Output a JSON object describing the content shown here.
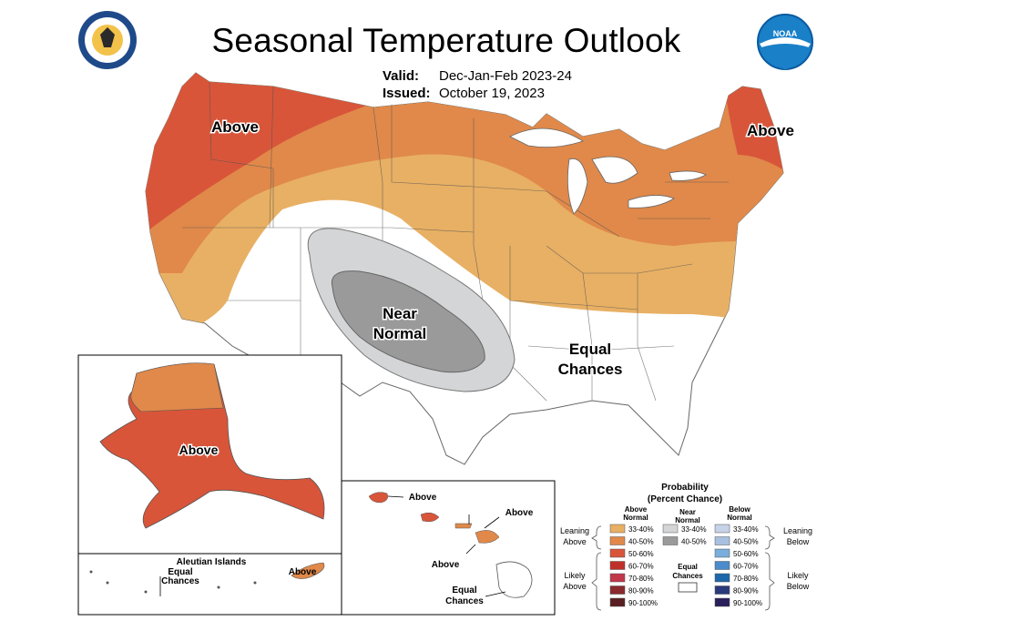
{
  "header": {
    "title": "Seasonal Temperature Outlook",
    "valid_label": "Valid:",
    "valid_value": "Dec-Jan-Feb 2023-24",
    "issued_label": "Issued:",
    "issued_value": "October 19, 2023",
    "noaa_logo_text": "NOAA"
  },
  "map_labels": {
    "west_above": "Above",
    "northeast_above": "Above",
    "near_normal_line1": "Near",
    "near_normal_line2": "Normal",
    "equal_line1": "Equal",
    "equal_line2": "Chances",
    "alaska_above": "Above",
    "aleutian_title": "Aleutian Islands",
    "aleutian_equal_line1": "Equal",
    "aleutian_equal_line2": "Chances",
    "aleutian_above": "Above",
    "hawaii_above_1": "Above",
    "hawaii_above_2": "Above",
    "hawaii_above_3": "Above",
    "hawaii_equal_line1": "Equal",
    "hawaii_equal_line2": "Chances"
  },
  "legend": {
    "title_line1": "Probability",
    "title_line2": "(Percent Chance)",
    "col_above_line1": "Above",
    "col_above_line2": "Normal",
    "col_near_line1": "Near",
    "col_near_line2": "Normal",
    "col_below_line1": "Below",
    "col_below_line2": "Normal",
    "leaning_above_line1": "Leaning",
    "leaning_above_line2": "Above",
    "likely_above_line1": "Likely",
    "likely_above_line2": "Above",
    "leaning_below_line1": "Leaning",
    "leaning_below_line2": "Below",
    "likely_below_line1": "Likely",
    "likely_below_line2": "Below",
    "equal_line1": "Equal",
    "equal_line2": "Chances",
    "above": [
      {
        "range": "33-40%",
        "color": "#e8b064"
      },
      {
        "range": "40-50%",
        "color": "#e0894a"
      },
      {
        "range": "50-60%",
        "color": "#d8553a"
      },
      {
        "range": "60-70%",
        "color": "#c0302a"
      },
      {
        "range": "70-80%",
        "color": "#c0384a"
      },
      {
        "range": "80-90%",
        "color": "#8a2a2e"
      },
      {
        "range": "90-100%",
        "color": "#5a1f22"
      }
    ],
    "near": [
      {
        "range": "33-40%",
        "color": "#d4d5d6"
      },
      {
        "range": "40-50%",
        "color": "#9a9a9a"
      }
    ],
    "below": [
      {
        "range": "33-40%",
        "color": "#c6d2e8"
      },
      {
        "range": "40-50%",
        "color": "#a8c0e0"
      },
      {
        "range": "50-60%",
        "color": "#7aaedc"
      },
      {
        "range": "60-70%",
        "color": "#4a8ccc"
      },
      {
        "range": "70-80%",
        "color": "#1f66aa"
      },
      {
        "range": "80-90%",
        "color": "#2a3a7a"
      },
      {
        "range": "90-100%",
        "color": "#2a1f5a"
      }
    ]
  },
  "colors": {
    "above_33_40": "#e8b064",
    "above_40_50": "#e0894a",
    "above_50_60": "#d8553a",
    "near_33_40": "#d4d5d6",
    "near_40_50": "#9a9a9a"
  }
}
